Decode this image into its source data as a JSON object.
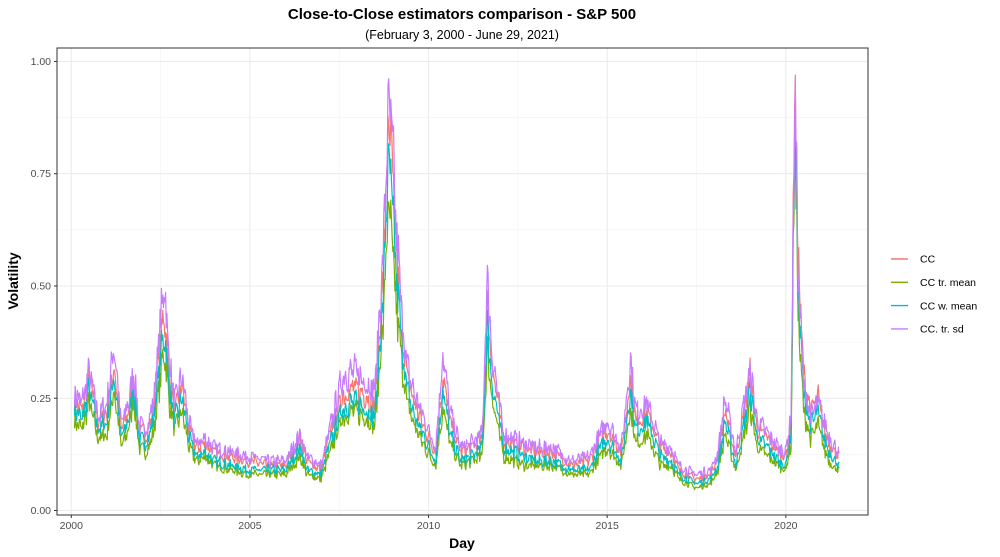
{
  "chart_data": {
    "type": "line",
    "title": "Close-to-Close estimators comparison - S&P 500",
    "subtitle": "(February 3, 2000 - June 29, 2021)",
    "xlabel": "Day",
    "ylabel": "Volatility",
    "x_ticks": [
      "2000",
      "2005",
      "2010",
      "2015",
      "2020"
    ],
    "y_ticks": [
      "0.00",
      "0.25",
      "0.50",
      "0.75",
      "1.00"
    ],
    "xlim": [
      1999.6,
      2022.3
    ],
    "ylim": [
      -0.01,
      1.03
    ],
    "grid": true,
    "legend_position": "right",
    "x": [
      2000.09,
      2000.3,
      2000.5,
      2000.75,
      2001.0,
      2001.2,
      2001.4,
      2001.6,
      2001.75,
      2001.9,
      2002.1,
      2002.3,
      2002.5,
      2002.6,
      2002.75,
      2002.9,
      2003.1,
      2003.3,
      2003.5,
      2003.75,
      2004.0,
      2004.5,
      2005.0,
      2005.5,
      2006.0,
      2006.4,
      2006.6,
      2007.0,
      2007.2,
      2007.6,
      2007.9,
      2008.2,
      2008.5,
      2008.75,
      2008.85,
      2008.95,
      2009.1,
      2009.25,
      2009.4,
      2009.6,
      2009.9,
      2010.2,
      2010.4,
      2010.6,
      2010.9,
      2011.2,
      2011.5,
      2011.65,
      2011.75,
      2011.9,
      2012.1,
      2012.4,
      2012.7,
      2013.0,
      2013.5,
      2014.0,
      2014.5,
      2014.8,
      2015.0,
      2015.4,
      2015.65,
      2015.8,
      2016.0,
      2016.1,
      2016.5,
      2016.8,
      2017.0,
      2017.5,
      2017.9,
      2018.1,
      2018.3,
      2018.6,
      2018.9,
      2019.0,
      2019.2,
      2019.5,
      2019.8,
      2020.0,
      2020.15,
      2020.25,
      2020.35,
      2020.5,
      2020.7,
      2020.9,
      2021.1,
      2021.3,
      2021.49
    ],
    "series": [
      {
        "name": "CC",
        "color": "#F8766D",
        "values": [
          0.25,
          0.22,
          0.3,
          0.2,
          0.22,
          0.32,
          0.18,
          0.22,
          0.3,
          0.18,
          0.17,
          0.22,
          0.38,
          0.44,
          0.3,
          0.22,
          0.28,
          0.18,
          0.14,
          0.15,
          0.13,
          0.12,
          0.11,
          0.1,
          0.1,
          0.16,
          0.11,
          0.09,
          0.16,
          0.26,
          0.27,
          0.26,
          0.24,
          0.55,
          0.83,
          0.8,
          0.58,
          0.42,
          0.3,
          0.24,
          0.18,
          0.13,
          0.3,
          0.2,
          0.13,
          0.14,
          0.16,
          0.46,
          0.35,
          0.26,
          0.16,
          0.15,
          0.14,
          0.13,
          0.13,
          0.1,
          0.11,
          0.16,
          0.18,
          0.13,
          0.3,
          0.2,
          0.21,
          0.22,
          0.14,
          0.13,
          0.09,
          0.07,
          0.08,
          0.12,
          0.22,
          0.12,
          0.25,
          0.3,
          0.18,
          0.16,
          0.13,
          0.12,
          0.2,
          0.97,
          0.55,
          0.3,
          0.22,
          0.25,
          0.17,
          0.14,
          0.12
        ]
      },
      {
        "name": "CC tr. mean",
        "color": "#7CAE00",
        "values": [
          0.2,
          0.18,
          0.24,
          0.16,
          0.17,
          0.27,
          0.14,
          0.18,
          0.25,
          0.14,
          0.13,
          0.17,
          0.3,
          0.36,
          0.24,
          0.18,
          0.22,
          0.14,
          0.11,
          0.12,
          0.1,
          0.09,
          0.08,
          0.08,
          0.08,
          0.12,
          0.08,
          0.07,
          0.12,
          0.21,
          0.22,
          0.21,
          0.19,
          0.44,
          0.66,
          0.62,
          0.45,
          0.33,
          0.24,
          0.19,
          0.14,
          0.1,
          0.23,
          0.15,
          0.1,
          0.11,
          0.12,
          0.36,
          0.27,
          0.2,
          0.12,
          0.11,
          0.1,
          0.1,
          0.1,
          0.08,
          0.08,
          0.12,
          0.14,
          0.1,
          0.23,
          0.15,
          0.16,
          0.17,
          0.1,
          0.1,
          0.07,
          0.05,
          0.06,
          0.09,
          0.17,
          0.09,
          0.19,
          0.23,
          0.14,
          0.12,
          0.1,
          0.09,
          0.15,
          0.85,
          0.42,
          0.22,
          0.16,
          0.19,
          0.13,
          0.1,
          0.09
        ]
      },
      {
        "name": "CC w. mean",
        "color": "#00BFC4",
        "values": [
          0.23,
          0.2,
          0.27,
          0.18,
          0.2,
          0.3,
          0.16,
          0.2,
          0.28,
          0.16,
          0.15,
          0.2,
          0.34,
          0.4,
          0.27,
          0.2,
          0.25,
          0.16,
          0.12,
          0.13,
          0.11,
          0.1,
          0.09,
          0.09,
          0.09,
          0.14,
          0.09,
          0.08,
          0.14,
          0.23,
          0.24,
          0.23,
          0.21,
          0.5,
          0.76,
          0.72,
          0.52,
          0.37,
          0.27,
          0.21,
          0.16,
          0.11,
          0.27,
          0.17,
          0.11,
          0.12,
          0.14,
          0.42,
          0.3,
          0.23,
          0.14,
          0.13,
          0.12,
          0.11,
          0.11,
          0.09,
          0.09,
          0.14,
          0.16,
          0.11,
          0.27,
          0.18,
          0.19,
          0.2,
          0.12,
          0.11,
          0.08,
          0.06,
          0.07,
          0.1,
          0.2,
          0.1,
          0.22,
          0.27,
          0.16,
          0.14,
          0.11,
          0.1,
          0.18,
          0.92,
          0.48,
          0.26,
          0.19,
          0.22,
          0.15,
          0.12,
          0.1
        ]
      },
      {
        "name": "CC. tr. sd",
        "color": "#C77CFF",
        "values": [
          0.26,
          0.24,
          0.31,
          0.21,
          0.24,
          0.37,
          0.19,
          0.24,
          0.31,
          0.19,
          0.18,
          0.24,
          0.42,
          0.51,
          0.33,
          0.24,
          0.3,
          0.19,
          0.15,
          0.16,
          0.14,
          0.13,
          0.12,
          0.11,
          0.11,
          0.17,
          0.12,
          0.1,
          0.17,
          0.3,
          0.31,
          0.29,
          0.27,
          0.6,
          0.86,
          0.87,
          0.62,
          0.44,
          0.32,
          0.26,
          0.2,
          0.14,
          0.35,
          0.22,
          0.14,
          0.15,
          0.17,
          0.53,
          0.37,
          0.28,
          0.17,
          0.16,
          0.15,
          0.14,
          0.14,
          0.11,
          0.12,
          0.17,
          0.2,
          0.14,
          0.34,
          0.22,
          0.23,
          0.24,
          0.15,
          0.14,
          0.1,
          0.08,
          0.09,
          0.13,
          0.25,
          0.13,
          0.27,
          0.31,
          0.2,
          0.17,
          0.14,
          0.13,
          0.22,
          0.95,
          0.52,
          0.28,
          0.21,
          0.24,
          0.19,
          0.15,
          0.13
        ]
      }
    ]
  }
}
